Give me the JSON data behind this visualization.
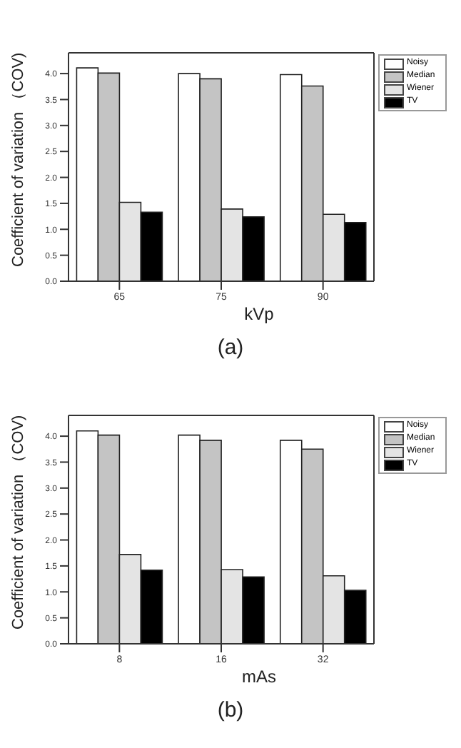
{
  "chart_data": [
    {
      "type": "bar",
      "title": "(a)",
      "xlabel": "kVp",
      "ylabel": "Coefficient of variation （COV)",
      "categories": [
        "65",
        "75",
        "90"
      ],
      "series": [
        {
          "name": "Noisy",
          "color": "#ffffff",
          "values": [
            4.11,
            4.0,
            3.98
          ]
        },
        {
          "name": "Median",
          "color": "#c4c4c4",
          "values": [
            4.01,
            3.9,
            3.76
          ]
        },
        {
          "name": "Wiener",
          "color": "#e4e4e4",
          "values": [
            1.52,
            1.39,
            1.29
          ]
        },
        {
          "name": "TV",
          "color": "#000000",
          "values": [
            1.33,
            1.24,
            1.13
          ]
        }
      ],
      "ylim": [
        0,
        4.4
      ],
      "yticks": [
        {
          "value": 0,
          "label": "0.0"
        },
        0.5,
        {
          "value": 1,
          "label": "1.0"
        },
        1.5,
        {
          "value": 2,
          "label": "2.0"
        },
        2.5,
        {
          "value": 3,
          "label": "3.0"
        },
        3.5,
        {
          "value": 4,
          "label": "4.0"
        }
      ],
      "grid": false,
      "legend": "top right"
    },
    {
      "type": "bar",
      "title": "(b)",
      "xlabel": "mAs",
      "ylabel": "Coefficient of variation （COV)",
      "categories": [
        "8",
        "16",
        "32"
      ],
      "series": [
        {
          "name": "Noisy",
          "color": "#ffffff",
          "values": [
            4.1,
            4.02,
            3.92
          ]
        },
        {
          "name": "Median",
          "color": "#c4c4c4",
          "values": [
            4.02,
            3.92,
            3.75
          ]
        },
        {
          "name": "Wiener",
          "color": "#e4e4e4",
          "values": [
            1.72,
            1.43,
            1.31
          ]
        },
        {
          "name": "TV",
          "color": "#000000",
          "values": [
            1.42,
            1.29,
            1.03
          ]
        }
      ],
      "ylim": [
        0,
        4.4
      ],
      "yticks": [
        {
          "value": 0,
          "label": "0.0"
        },
        0.5,
        {
          "value": 1,
          "label": "1.0"
        },
        1.5,
        {
          "value": 2,
          "label": "2.0"
        },
        2.5,
        {
          "value": 3,
          "label": "3.0"
        },
        3.5,
        {
          "value": 4,
          "label": "4.0"
        }
      ],
      "grid": false,
      "legend": "top right"
    }
  ]
}
